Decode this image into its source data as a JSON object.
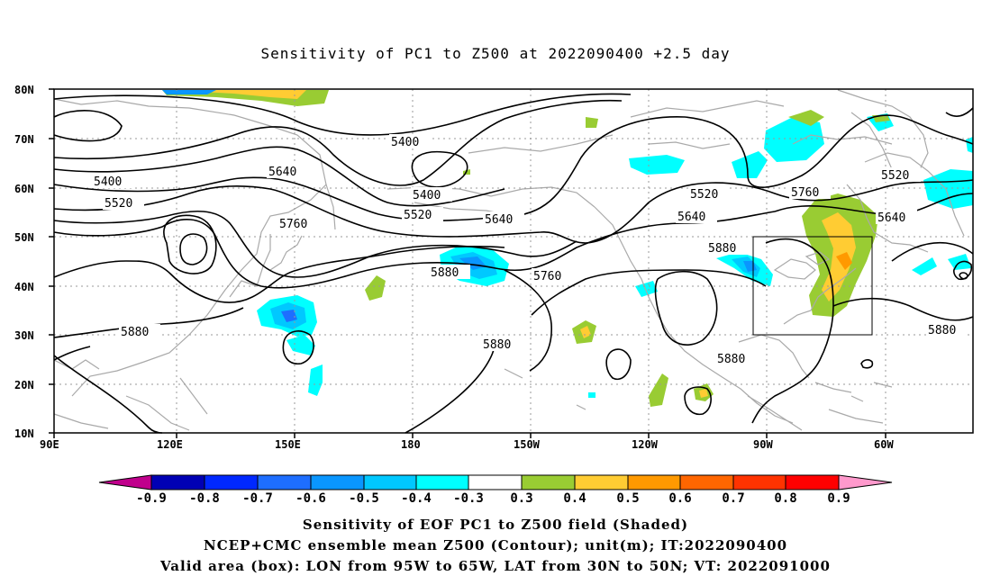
{
  "title": "Sensitivity of PC1 to Z500 at 2022090400 +2.5 day",
  "lat_labels": [
    "80N",
    "70N",
    "60N",
    "50N",
    "40N",
    "30N",
    "20N",
    "10N"
  ],
  "lon_labels": [
    "90E",
    "120E",
    "150E",
    "180",
    "150W",
    "120W",
    "90W",
    "60W"
  ],
  "contour_labels": [
    "5400",
    "5400",
    "5520",
    "5640",
    "5400",
    "5520",
    "5640",
    "5520",
    "5640",
    "5760",
    "5520",
    "5640",
    "5760",
    "5880",
    "5880",
    "5760",
    "5880",
    "5880",
    "5880",
    "5880"
  ],
  "colorbar": {
    "labels": [
      "-0.9",
      "-0.8",
      "-0.7",
      "-0.6",
      "-0.5",
      "-0.4",
      "-0.3",
      "0.3",
      "0.4",
      "0.5",
      "0.6",
      "0.7",
      "0.8",
      "0.9"
    ],
    "colors": [
      "#c0008c",
      "#0000b4",
      "#0028ff",
      "#1e6eff",
      "#0a96ff",
      "#00c8ff",
      "#00ffff",
      "#ffffff",
      "#99cc33",
      "#ffcc33",
      "#ff9900",
      "#ff6600",
      "#ff3300",
      "#ff0000",
      "#ff99cc"
    ]
  },
  "captions": {
    "line1": "Sensitivity of EOF PC1 to Z500 field (Shaded)",
    "line2": "NCEP+CMC ensemble mean Z500 (Contour); unit(m); IT:2022090400",
    "line3": "Valid area (box): LON from 95W to 65W, LAT from 30N to 50N; VT: 2022091000"
  }
}
